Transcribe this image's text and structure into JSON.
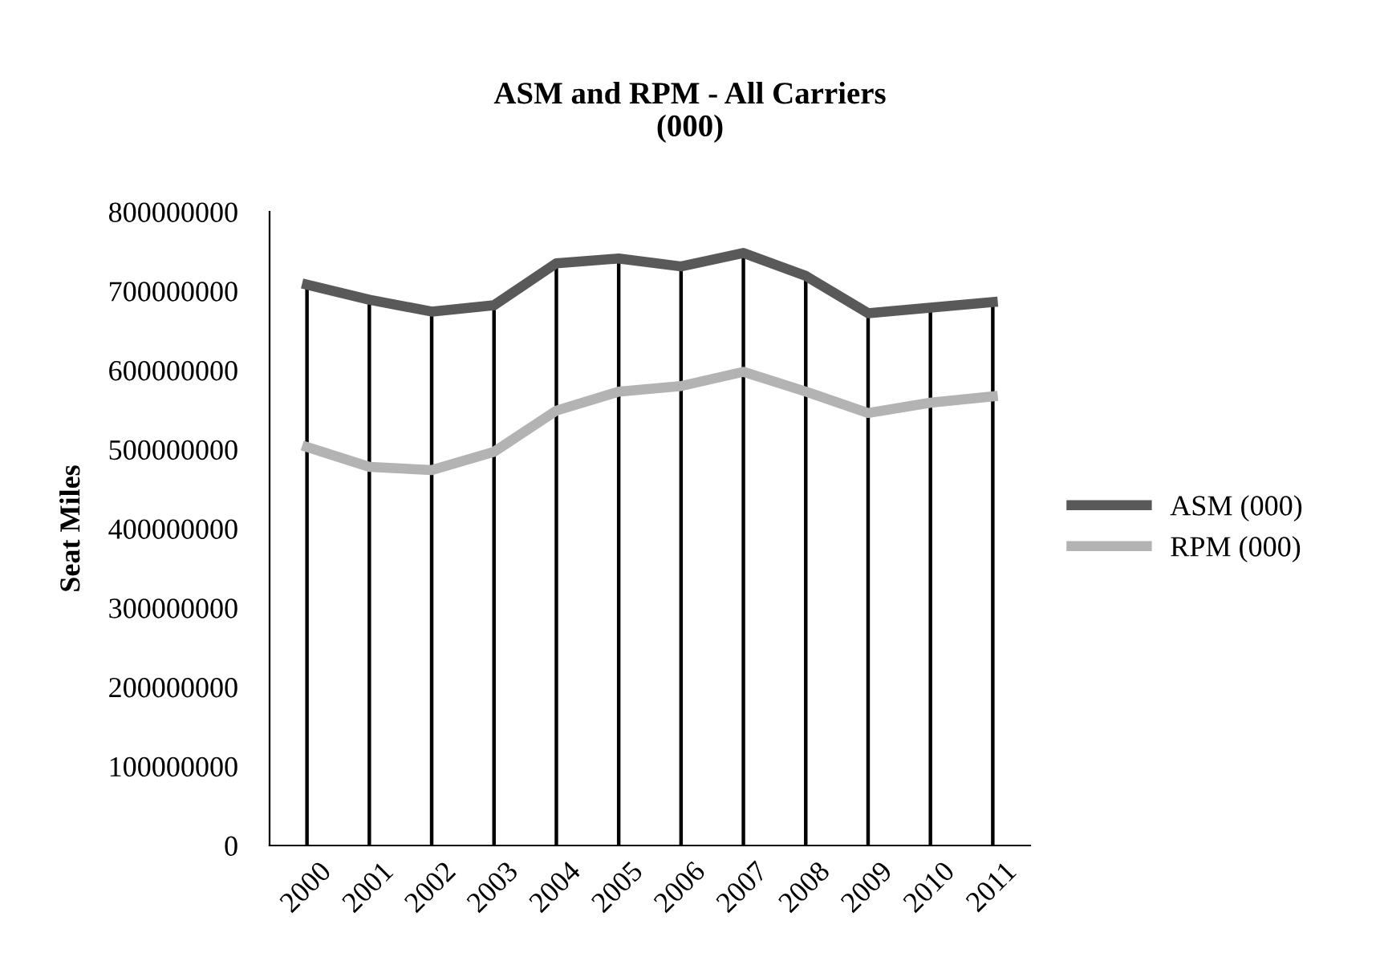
{
  "chart_data": {
    "type": "line",
    "title": "ASM and RPM - All Carriers\n(000)",
    "ylabel": "Seat Miles",
    "categories": [
      "2000",
      "2001",
      "2002",
      "2003",
      "2004",
      "2005",
      "2006",
      "2007",
      "2008",
      "2009",
      "2010",
      "2011"
    ],
    "series": [
      {
        "name": "ASM (000)",
        "color": "#595959",
        "values": [
          708000000,
          689000000,
          674000000,
          682000000,
          735000000,
          741000000,
          731000000,
          748000000,
          719000000,
          672000000,
          679000000,
          686000000
        ]
      },
      {
        "name": "RPM (000)",
        "color": "#b3b3b3",
        "values": [
          503000000,
          478000000,
          474000000,
          497000000,
          549000000,
          573000000,
          580000000,
          598000000,
          573000000,
          546000000,
          559000000,
          567000000
        ]
      }
    ],
    "ylim": [
      0,
      800000000
    ],
    "yticks": [
      0,
      100000000,
      200000000,
      300000000,
      400000000,
      500000000,
      600000000,
      700000000,
      800000000
    ],
    "grid": "x",
    "legend": "right",
    "marker": "none",
    "line_style": "solid"
  }
}
